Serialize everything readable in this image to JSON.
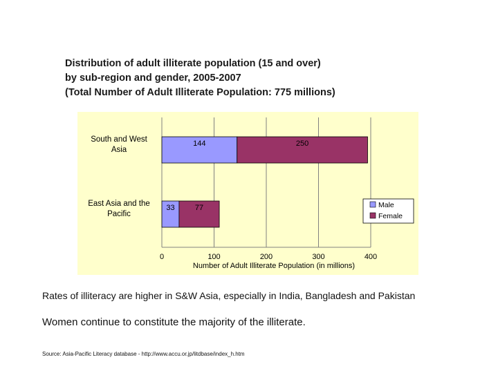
{
  "title": {
    "line1": "Distribution of adult illiterate population (15 and over)",
    "line2": "by sub-region and gender, 2005-2007",
    "line3": "(Total Number of Adult Illiterate Population: 775 millions)"
  },
  "notes": {
    "rates": "Rates of illiteracy are higher in S&W Asia, especially in India, Bangladesh and Pakistan",
    "women": "Women continue to constitute the majority of the illiterate.",
    "source": "Source: Asia-Pacific Literacy database - http://www.accu.or.jp/litdbase/index_h.htm"
  },
  "chart_data": {
    "type": "bar",
    "orientation": "horizontal",
    "stacked": true,
    "categories": [
      [
        "South and West",
        "Asia"
      ],
      [
        "East Asia and the",
        "Pacific"
      ]
    ],
    "series": [
      {
        "name": "Male",
        "values": [
          144,
          33
        ],
        "color": "#9999ff"
      },
      {
        "name": "Female",
        "values": [
          250,
          77
        ],
        "color": "#993366"
      }
    ],
    "xlabel": "Number of Adult Illiterate Population (in millions)",
    "xlim": [
      0,
      400
    ],
    "xticks": [
      "0",
      "100",
      "200",
      "300",
      "400"
    ],
    "grid": true,
    "legend": "right",
    "plot_background": "#ffffcc"
  }
}
